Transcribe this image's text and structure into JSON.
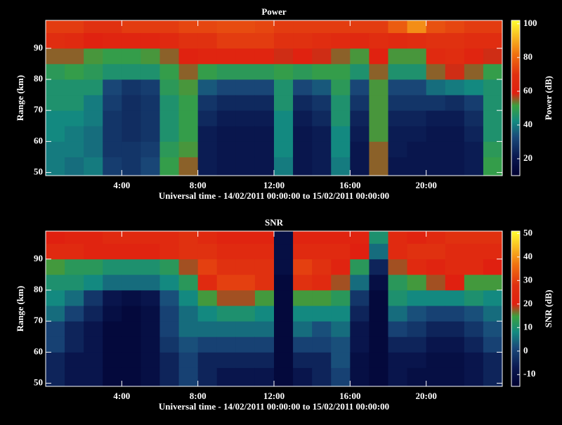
{
  "chart_data": [
    {
      "type": "heatmap",
      "title": "Power",
      "xlabel": "Universal time - 14/02/2011 00:00:00 to 15/02/2011 00:00:00",
      "ylabel": "Range (km)",
      "colorbar_label": "Power (dB)",
      "xlim": [
        0,
        24
      ],
      "ylim": [
        49,
        99
      ],
      "xticks": [
        {
          "value": 4,
          "label": "4:00"
        },
        {
          "value": 8,
          "label": "8:00"
        },
        {
          "value": 12,
          "label": "12:00"
        },
        {
          "value": 16,
          "label": "16:00"
        },
        {
          "value": 20,
          "label": "20:00"
        }
      ],
      "yticks": [
        50,
        60,
        70,
        80,
        90
      ],
      "clim": [
        10,
        102
      ],
      "cticks": [
        20,
        40,
        60,
        80,
        100
      ],
      "colormap": [
        {
          "at": 0,
          "color": "#000030"
        },
        {
          "at": 0.12,
          "color": "#0a1850"
        },
        {
          "at": 0.25,
          "color": "#1a4a7a"
        },
        {
          "at": 0.35,
          "color": "#138a80"
        },
        {
          "at": 0.45,
          "color": "#3aa040"
        },
        {
          "at": 0.53,
          "color": "#e02010"
        },
        {
          "at": 0.65,
          "color": "#e03010"
        },
        {
          "at": 0.78,
          "color": "#f07010"
        },
        {
          "at": 1,
          "color": "#ffff30"
        }
      ],
      "x": [
        0,
        1,
        2,
        3,
        4,
        5,
        6,
        7,
        8,
        9,
        10,
        11,
        12,
        13,
        14,
        15,
        16,
        17,
        18,
        19,
        20,
        21,
        22,
        23
      ],
      "y": [
        52.5,
        57.5,
        62.5,
        67.5,
        72.5,
        77.5,
        82.5,
        87.5,
        92.5,
        97.5
      ],
      "z": [
        [
          40,
          40,
          42,
          42,
          45,
          45,
          48,
          55,
          68,
          72
        ],
        [
          38,
          40,
          40,
          42,
          45,
          45,
          50,
          55,
          66,
          72
        ],
        [
          40,
          38,
          38,
          40,
          40,
          45,
          48,
          52,
          60,
          70
        ],
        [
          30,
          28,
          28,
          28,
          30,
          32,
          45,
          50,
          62,
          70
        ],
        [
          28,
          28,
          26,
          26,
          26,
          28,
          45,
          50,
          62,
          72
        ],
        [
          32,
          30,
          28,
          28,
          28,
          30,
          45,
          52,
          62,
          72
        ],
        [
          50,
          48,
          45,
          45,
          45,
          48,
          50,
          55,
          65,
          72
        ],
        [
          55,
          52,
          50,
          50,
          50,
          52,
          55,
          60,
          70,
          74
        ],
        [
          22,
          22,
          22,
          25,
          28,
          35,
          50,
          62,
          70,
          74
        ],
        [
          20,
          20,
          20,
          22,
          25,
          32,
          48,
          62,
          72,
          75
        ],
        [
          20,
          20,
          20,
          22,
          25,
          32,
          48,
          62,
          72,
          75
        ],
        [
          20,
          20,
          20,
          22,
          25,
          32,
          48,
          62,
          72,
          74
        ],
        [
          40,
          42,
          42,
          42,
          45,
          45,
          50,
          58,
          70,
          72
        ],
        [
          20,
          20,
          20,
          22,
          25,
          32,
          48,
          60,
          70,
          72
        ],
        [
          22,
          22,
          22,
          25,
          28,
          35,
          50,
          58,
          68,
          72
        ],
        [
          40,
          42,
          42,
          45,
          45,
          48,
          50,
          55,
          66,
          72
        ],
        [
          20,
          20,
          22,
          24,
          28,
          32,
          45,
          52,
          64,
          72
        ],
        [
          55,
          55,
          52,
          52,
          52,
          52,
          55,
          60,
          68,
          72
        ],
        [
          20,
          22,
          22,
          24,
          28,
          32,
          45,
          52,
          66,
          78
        ],
        [
          20,
          20,
          22,
          24,
          28,
          32,
          45,
          52,
          68,
          86
        ],
        [
          20,
          20,
          20,
          22,
          28,
          38,
          55,
          66,
          70,
          76
        ],
        [
          20,
          20,
          20,
          22,
          26,
          40,
          58,
          68,
          70,
          74
        ],
        [
          22,
          22,
          24,
          26,
          30,
          42,
          55,
          62,
          68,
          72
        ],
        [
          50,
          48,
          45,
          45,
          45,
          45,
          50,
          58,
          68,
          72
        ]
      ]
    },
    {
      "type": "heatmap",
      "title": "SNR",
      "xlabel": "Universal time - 14/02/2011 00:00:00 to 15/02/2011 00:00:00",
      "ylabel": "Range (km)",
      "colorbar_label": "SNR (dB)",
      "xlim": [
        0,
        24
      ],
      "ylim": [
        49,
        99
      ],
      "xticks": [
        {
          "value": 4,
          "label": "4:00"
        },
        {
          "value": 8,
          "label": "8:00"
        },
        {
          "value": 12,
          "label": "12:00"
        },
        {
          "value": 16,
          "label": "16:00"
        },
        {
          "value": 20,
          "label": "20:00"
        }
      ],
      "yticks": [
        50,
        60,
        70,
        80,
        90
      ],
      "clim": [
        -15,
        51
      ],
      "cticks": [
        -10,
        0,
        10,
        20,
        30,
        40,
        50
      ],
      "colormap": [
        {
          "at": 0,
          "color": "#000030"
        },
        {
          "at": 0.12,
          "color": "#0a1850"
        },
        {
          "at": 0.25,
          "color": "#1a4a7a"
        },
        {
          "at": 0.35,
          "color": "#138a80"
        },
        {
          "at": 0.45,
          "color": "#3aa040"
        },
        {
          "at": 0.53,
          "color": "#e02010"
        },
        {
          "at": 0.65,
          "color": "#e03010"
        },
        {
          "at": 0.78,
          "color": "#f07010"
        },
        {
          "at": 1,
          "color": "#ffff30"
        }
      ],
      "x": [
        0,
        1,
        2,
        3,
        4,
        5,
        6,
        7,
        8,
        9,
        10,
        11,
        12,
        13,
        14,
        15,
        16,
        17,
        18,
        19,
        20,
        21,
        22,
        23
      ],
      "y": [
        52.5,
        57.5,
        62.5,
        67.5,
        72.5,
        77.5,
        82.5,
        87.5,
        92.5,
        97.5
      ],
      "z": [
        [
          -5,
          -5,
          0,
          0,
          5,
          8,
          10,
          15,
          25,
          20
        ],
        [
          -8,
          -8,
          -5,
          -5,
          0,
          5,
          10,
          12,
          25,
          22
        ],
        [
          -8,
          -8,
          -8,
          -8,
          -5,
          -2,
          8,
          12,
          22,
          22
        ],
        [
          -12,
          -12,
          -12,
          -12,
          -10,
          -8,
          5,
          10,
          22,
          25
        ],
        [
          -12,
          -12,
          -12,
          -12,
          -12,
          -10,
          5,
          10,
          22,
          25
        ],
        [
          -10,
          -10,
          -10,
          -10,
          -10,
          -8,
          5,
          10,
          22,
          25
        ],
        [
          -5,
          -5,
          -2,
          0,
          0,
          2,
          8,
          12,
          25,
          25
        ],
        [
          0,
          0,
          2,
          5,
          5,
          8,
          12,
          18,
          28,
          28
        ],
        [
          -5,
          -5,
          0,
          5,
          8,
          15,
          25,
          30,
          28,
          25
        ],
        [
          -8,
          -5,
          0,
          5,
          10,
          18,
          30,
          28,
          25,
          22
        ],
        [
          -8,
          -5,
          0,
          5,
          10,
          18,
          30,
          28,
          25,
          22
        ],
        [
          -8,
          -5,
          0,
          5,
          8,
          15,
          28,
          28,
          25,
          22
        ],
        [
          -12,
          -12,
          -12,
          -12,
          -12,
          -12,
          -12,
          -10,
          -10,
          -10
        ],
        [
          -8,
          -5,
          0,
          5,
          8,
          15,
          28,
          30,
          25,
          22
        ],
        [
          -5,
          -5,
          0,
          2,
          8,
          15,
          25,
          28,
          25,
          22
        ],
        [
          0,
          2,
          2,
          5,
          8,
          12,
          18,
          22,
          25,
          22
        ],
        [
          -10,
          -10,
          -8,
          -8,
          -5,
          -2,
          5,
          12,
          20,
          22
        ],
        [
          -12,
          -12,
          -12,
          -12,
          -12,
          -12,
          -10,
          -5,
          5,
          10
        ],
        [
          -8,
          -8,
          -5,
          0,
          5,
          10,
          12,
          18,
          25,
          25
        ],
        [
          -10,
          -8,
          -5,
          -2,
          2,
          8,
          15,
          25,
          28,
          22
        ],
        [
          -10,
          -10,
          -8,
          -5,
          0,
          8,
          18,
          22,
          28,
          25
        ],
        [
          -10,
          -10,
          -8,
          -5,
          0,
          8,
          20,
          25,
          25,
          28
        ],
        [
          -8,
          -8,
          -5,
          -2,
          2,
          10,
          15,
          25,
          25,
          28
        ],
        [
          -5,
          -5,
          0,
          2,
          5,
          8,
          15,
          20,
          25,
          28
        ]
      ]
    }
  ]
}
